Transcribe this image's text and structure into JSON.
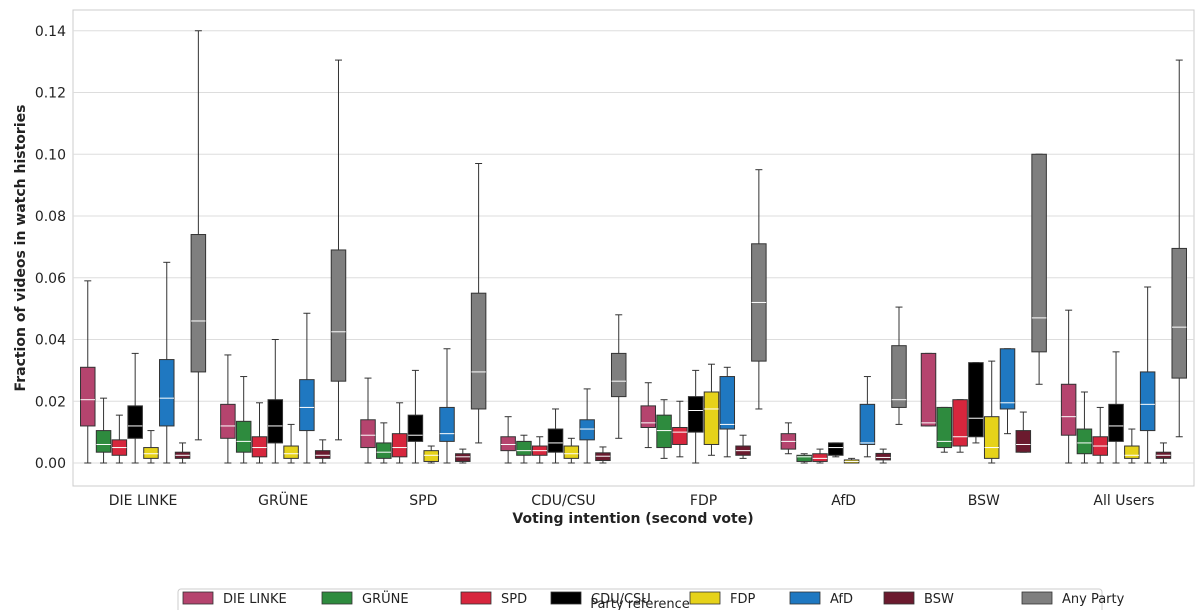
{
  "chart_data": {
    "type": "boxplot",
    "xlabel": "Voting intention (second vote)",
    "ylabel": "Fraction of videos in watch histories",
    "ylim": [
      -0.007,
      0.145
    ],
    "yticks": [
      0.0,
      0.02,
      0.04,
      0.06,
      0.08,
      0.1,
      0.12,
      0.14
    ],
    "ytick_labels": [
      "0.00",
      "0.02",
      "0.04",
      "0.06",
      "0.08",
      "0.10",
      "0.12",
      "0.14"
    ],
    "grid": true,
    "groups": [
      "DIE LINKE",
      "GRÜNE",
      "SPD",
      "CDU/CSU",
      "FDP",
      "AfD",
      "BSW",
      "All Users"
    ],
    "legend": {
      "title": "Party reference",
      "placement": "bottom-center"
    },
    "series": [
      {
        "name": "DIE LINKE",
        "color": "#B5446E",
        "boxes": [
          [
            0,
            0.012,
            0.0205,
            0.031,
            0.059
          ],
          [
            0,
            0.008,
            0.012,
            0.019,
            0.035
          ],
          [
            0,
            0.005,
            0.009,
            0.014,
            0.0275
          ],
          [
            0,
            0.004,
            0.006,
            0.0085,
            0.015
          ],
          [
            0.005,
            0.0115,
            0.013,
            0.0185,
            0.026
          ],
          [
            0.003,
            0.0045,
            0.007,
            0.0095,
            0.013
          ],
          [
            0.012,
            0.012,
            0.013,
            0.0355,
            0.0355
          ],
          [
            0,
            0.009,
            0.015,
            0.0255,
            0.0495
          ]
        ]
      },
      {
        "name": "GRÜNE",
        "color": "#2E8B3E",
        "boxes": [
          [
            0,
            0.0035,
            0.006,
            0.0105,
            0.021
          ],
          [
            0,
            0.0035,
            0.007,
            0.0135,
            0.028
          ],
          [
            0,
            0.0015,
            0.0035,
            0.0065,
            0.013
          ],
          [
            0,
            0.0025,
            0.004,
            0.007,
            0.009
          ],
          [
            0.0015,
            0.005,
            0.0105,
            0.0155,
            0.0205
          ],
          [
            0,
            0.0005,
            0.002,
            0.0025,
            0.003
          ],
          [
            0.0035,
            0.005,
            0.007,
            0.018,
            0.018
          ],
          [
            0,
            0.003,
            0.0065,
            0.011,
            0.023
          ]
        ]
      },
      {
        "name": "SPD",
        "color": "#D7263D",
        "boxes": [
          [
            0,
            0.0025,
            0.005,
            0.0075,
            0.0155
          ],
          [
            0,
            0.002,
            0.005,
            0.0085,
            0.0195
          ],
          [
            0,
            0.002,
            0.005,
            0.0095,
            0.0195
          ],
          [
            0,
            0.0025,
            0.004,
            0.0055,
            0.0085
          ],
          [
            0.002,
            0.006,
            0.01,
            0.0115,
            0.02
          ],
          [
            0,
            0.0005,
            0.0015,
            0.003,
            0.0045
          ],
          [
            0.0035,
            0.0055,
            0.0085,
            0.0205,
            0.0205
          ],
          [
            0,
            0.0025,
            0.0055,
            0.0085,
            0.018
          ]
        ]
      },
      {
        "name": "CDU/CSU",
        "color": "#000000",
        "boxes": [
          [
            0,
            0.008,
            0.012,
            0.0185,
            0.0355
          ],
          [
            0,
            0.0065,
            0.012,
            0.0205,
            0.04
          ],
          [
            0,
            0.007,
            0.009,
            0.0155,
            0.03
          ],
          [
            0,
            0.0035,
            0.0065,
            0.011,
            0.0175
          ],
          [
            0,
            0.01,
            0.017,
            0.0215,
            0.03
          ],
          [
            0.002,
            0.0025,
            0.005,
            0.0065,
            0.0065
          ],
          [
            0.0065,
            0.0085,
            0.0145,
            0.0325,
            0.0325
          ],
          [
            0,
            0.007,
            0.012,
            0.019,
            0.036
          ]
        ]
      },
      {
        "name": "FDP",
        "color": "#E6D21A",
        "boxes": [
          [
            0,
            0.0015,
            0.003,
            0.005,
            0.0105
          ],
          [
            0,
            0.0015,
            0.003,
            0.0055,
            0.0125
          ],
          [
            0,
            0.0005,
            0.0025,
            0.004,
            0.0055
          ],
          [
            0,
            0.0015,
            0.003,
            0.0055,
            0.008
          ],
          [
            0.0025,
            0.006,
            0.0175,
            0.023,
            0.032
          ],
          [
            0,
            0,
            0.0005,
            0.001,
            0.0015
          ],
          [
            0,
            0.0015,
            0.005,
            0.015,
            0.033
          ],
          [
            0,
            0.0015,
            0.0025,
            0.0055,
            0.011
          ]
        ]
      },
      {
        "name": "AfD",
        "color": "#1F78C1",
        "boxes": [
          [
            0,
            0.012,
            0.021,
            0.0335,
            0.065
          ],
          [
            0,
            0.0105,
            0.018,
            0.027,
            0.0485
          ],
          [
            0,
            0.007,
            0.0095,
            0.018,
            0.037
          ],
          [
            0,
            0.0075,
            0.011,
            0.014,
            0.024
          ],
          [
            0.002,
            0.011,
            0.0125,
            0.028,
            0.031
          ],
          [
            0.002,
            0.006,
            0.0065,
            0.019,
            0.028
          ],
          [
            0.0095,
            0.0175,
            0.0195,
            0.037,
            0.037
          ],
          [
            0,
            0.0105,
            0.019,
            0.0295,
            0.057
          ]
        ]
      },
      {
        "name": "BSW",
        "color": "#6B1A2E",
        "boxes": [
          [
            0,
            0.0015,
            0.0025,
            0.0035,
            0.0065
          ],
          [
            0,
            0.0015,
            0.0025,
            0.004,
            0.0075
          ],
          [
            0,
            0.0005,
            0.002,
            0.003,
            0.0045
          ],
          [
            0,
            0.0008,
            0.0022,
            0.0033,
            0.0052
          ],
          [
            0.0015,
            0.0025,
            0.004,
            0.0055,
            0.009
          ],
          [
            0,
            0.001,
            0.0018,
            0.0031,
            0.0045
          ],
          [
            0.0035,
            0.0035,
            0.006,
            0.0105,
            0.0165
          ],
          [
            0,
            0.0015,
            0.0025,
            0.0035,
            0.0065
          ]
        ]
      },
      {
        "name": "Any Party",
        "color": "#7F7F7F",
        "boxes": [
          [
            0.0075,
            0.0295,
            0.046,
            0.074,
            0.14
          ],
          [
            0.0075,
            0.0265,
            0.0425,
            0.069,
            0.1305
          ],
          [
            0.0065,
            0.0175,
            0.0295,
            0.055,
            0.097
          ],
          [
            0.008,
            0.0215,
            0.0265,
            0.0355,
            0.048
          ],
          [
            0.0175,
            0.033,
            0.052,
            0.071,
            0.095
          ],
          [
            0.0125,
            0.018,
            0.0205,
            0.038,
            0.0505
          ],
          [
            0.0255,
            0.036,
            0.047,
            0.1,
            0.1
          ],
          [
            0.0085,
            0.0275,
            0.044,
            0.0695,
            0.1305
          ]
        ]
      }
    ]
  }
}
